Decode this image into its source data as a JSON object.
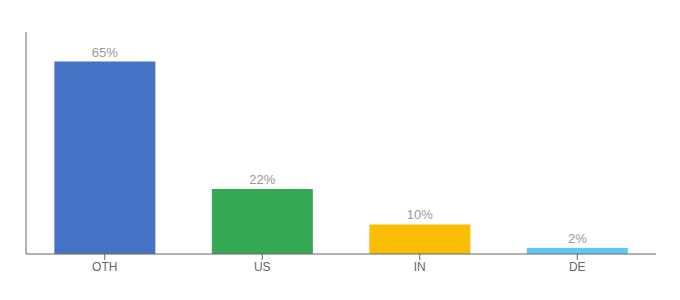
{
  "chart_data": {
    "type": "bar",
    "categories": [
      "OTH",
      "US",
      "IN",
      "DE"
    ],
    "values": [
      65,
      22,
      10,
      2
    ],
    "value_labels": [
      "65%",
      "22%",
      "10%",
      "2%"
    ],
    "colors": [
      "#4472c4",
      "#34a853",
      "#fbbc04",
      "#5bc8f5"
    ],
    "ylim": [
      0,
      75
    ],
    "data_labels": true,
    "tick_labels": "x",
    "grid": false
  }
}
